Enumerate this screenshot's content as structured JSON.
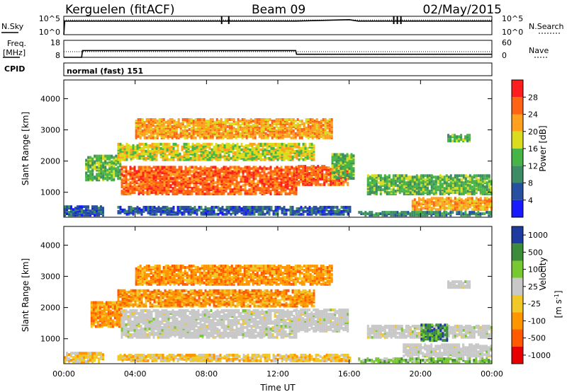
{
  "header": {
    "station": "Kerguelen (fitACF)",
    "beam": "Beam 09",
    "date": "02/May/2015"
  },
  "sky_panel": {
    "left_label": "N.Sky",
    "right_label": "N.Search",
    "left_ticks": [
      "10^5",
      "10^0"
    ],
    "right_ticks": [
      "10^5",
      "10^0"
    ]
  },
  "freq_panel": {
    "left_label_1": "Freq.",
    "left_label_2": "[MHz]",
    "right_label": "Nave",
    "left_ticks": [
      "18",
      "8"
    ],
    "right_ticks": [
      "60",
      "0"
    ]
  },
  "cpid": {
    "label": "CPID",
    "value": "normal (fast) 151"
  },
  "colors": {
    "power_scale": [
      "#1a1aff",
      "#2850a0",
      "#3c8c64",
      "#46b446",
      "#dcdc1e",
      "#ffa01e",
      "#ff6414",
      "#ff1e1e"
    ],
    "velocity_scale": [
      "#e60000",
      "#ff5a00",
      "#ff9600",
      "#f0c828",
      "#c8c8c8",
      "#78c832",
      "#3c8c3c",
      "#1e3ca0"
    ],
    "ground_scatter": "#c8c8c8"
  },
  "chart_data": [
    {
      "type": "line",
      "panel": "noise",
      "x_unit": "hours UT",
      "series": [
        {
          "name": "N.Sky",
          "x": [
            0,
            0.05,
            9,
            9.05,
            13,
            16,
            16.5,
            22,
            24
          ],
          "values": [
            1,
            5000,
            5000,
            5000,
            5000,
            12000,
            5000,
            5000,
            5000
          ]
        },
        {
          "name": "N.Search",
          "x": [
            0,
            24
          ],
          "values": [
            10000,
            10000
          ]
        }
      ]
    },
    {
      "type": "line",
      "panel": "frequency",
      "x_unit": "hours UT",
      "series": [
        {
          "name": "Freq.",
          "x": [
            0,
            1,
            1.05,
            13,
            13.05,
            24
          ],
          "values": [
            8,
            8,
            12,
            12,
            9.8,
            9.8
          ]
        },
        {
          "name": "Nave",
          "x": [
            0,
            24
          ],
          "values": [
            20,
            20
          ]
        }
      ]
    },
    {
      "type": "heatmap",
      "panel": "power",
      "ylabel": "Slant Range [km]",
      "x_ticks": [
        "00:00",
        "04:00",
        "08:00",
        "12:00",
        "16:00",
        "20:00",
        "00:00"
      ],
      "y_ticks": [
        "1000",
        "2000",
        "3000",
        "4000"
      ],
      "ylim": [
        200,
        4600
      ],
      "xlim": [
        0,
        24
      ],
      "colorbar_label": "Power [dB]",
      "colorbar_ticks": [
        "4",
        "8",
        "12",
        "16",
        "20",
        "24",
        "28"
      ],
      "regions": [
        {
          "t0": 0.0,
          "t1": 2.2,
          "r0": 220,
          "r1": 520,
          "level": 1
        },
        {
          "t0": 1.2,
          "t1": 3.2,
          "r0": 1350,
          "r1": 2150,
          "level": 3
        },
        {
          "t0": 3.0,
          "t1": 16.0,
          "r0": 250,
          "r1": 520,
          "level": 1
        },
        {
          "t0": 3.2,
          "t1": 13.0,
          "r0": 900,
          "r1": 1800,
          "level": 6
        },
        {
          "t0": 13.0,
          "t1": 15.9,
          "r0": 1200,
          "r1": 1800,
          "level": 6
        },
        {
          "t0": 3.0,
          "t1": 14.0,
          "r0": 2000,
          "r1": 2500,
          "level": 4
        },
        {
          "t0": 4.0,
          "t1": 15.0,
          "r0": 2700,
          "r1": 3300,
          "level": 5
        },
        {
          "t0": 15.0,
          "t1": 16.2,
          "r0": 1400,
          "r1": 2200,
          "level": 3
        },
        {
          "t0": 17.0,
          "t1": 24.0,
          "r0": 900,
          "r1": 1500,
          "level": 3
        },
        {
          "t0": 19.5,
          "t1": 24.0,
          "r0": 400,
          "r1": 800,
          "level": 5
        },
        {
          "t0": 16.5,
          "t1": 24.0,
          "r0": 220,
          "r1": 350,
          "level": 2
        },
        {
          "t0": 21.5,
          "t1": 22.8,
          "r0": 2600,
          "r1": 2800,
          "level": 3
        }
      ]
    },
    {
      "type": "heatmap",
      "panel": "velocity",
      "ylabel": "Slant Range [km]",
      "xlabel": "Time UT",
      "x_ticks": [
        "00:00",
        "04:00",
        "08:00",
        "12:00",
        "16:00",
        "20:00",
        "00:00"
      ],
      "y_ticks": [
        "1000",
        "2000",
        "3000",
        "4000"
      ],
      "ylim": [
        200,
        4600
      ],
      "xlim": [
        0,
        24
      ],
      "colorbar_label_1": "Velocity",
      "colorbar_label_2": "[m s",
      "colorbar_label_sup": "-1",
      "colorbar_label_3": "]",
      "colorbar_ticks": [
        "1000",
        "500",
        "100",
        "25",
        "-25",
        "-100",
        "-500",
        "-1000"
      ],
      "regions": [
        {
          "t0": 0.0,
          "t1": 2.2,
          "r0": 220,
          "r1": 520,
          "level": 3
        },
        {
          "t0": 1.5,
          "t1": 3.2,
          "r0": 1350,
          "r1": 2150,
          "level": 2
        },
        {
          "t0": 3.2,
          "t1": 13.0,
          "r0": 1000,
          "r1": 1900,
          "level": 4
        },
        {
          "t0": 13.0,
          "t1": 15.9,
          "r0": 1200,
          "r1": 1900,
          "level": 4
        },
        {
          "t0": 3.0,
          "t1": 14.0,
          "r0": 2000,
          "r1": 2500,
          "level": 2
        },
        {
          "t0": 4.0,
          "t1": 15.0,
          "r0": 2700,
          "r1": 3300,
          "level": 2
        },
        {
          "t0": 3.0,
          "t1": 16.0,
          "r0": 250,
          "r1": 450,
          "level": 3
        },
        {
          "t0": 17.0,
          "t1": 24.0,
          "r0": 1000,
          "r1": 1400,
          "level": 4
        },
        {
          "t0": 19.0,
          "t1": 24.0,
          "r0": 400,
          "r1": 800,
          "level": 4
        },
        {
          "t0": 20.0,
          "t1": 21.5,
          "r0": 900,
          "r1": 1400,
          "level": 6
        },
        {
          "t0": 16.5,
          "t1": 24.0,
          "r0": 220,
          "r1": 350,
          "level": 5
        },
        {
          "t0": 21.5,
          "t1": 22.8,
          "r0": 2600,
          "r1": 2800,
          "level": 4
        }
      ]
    }
  ]
}
